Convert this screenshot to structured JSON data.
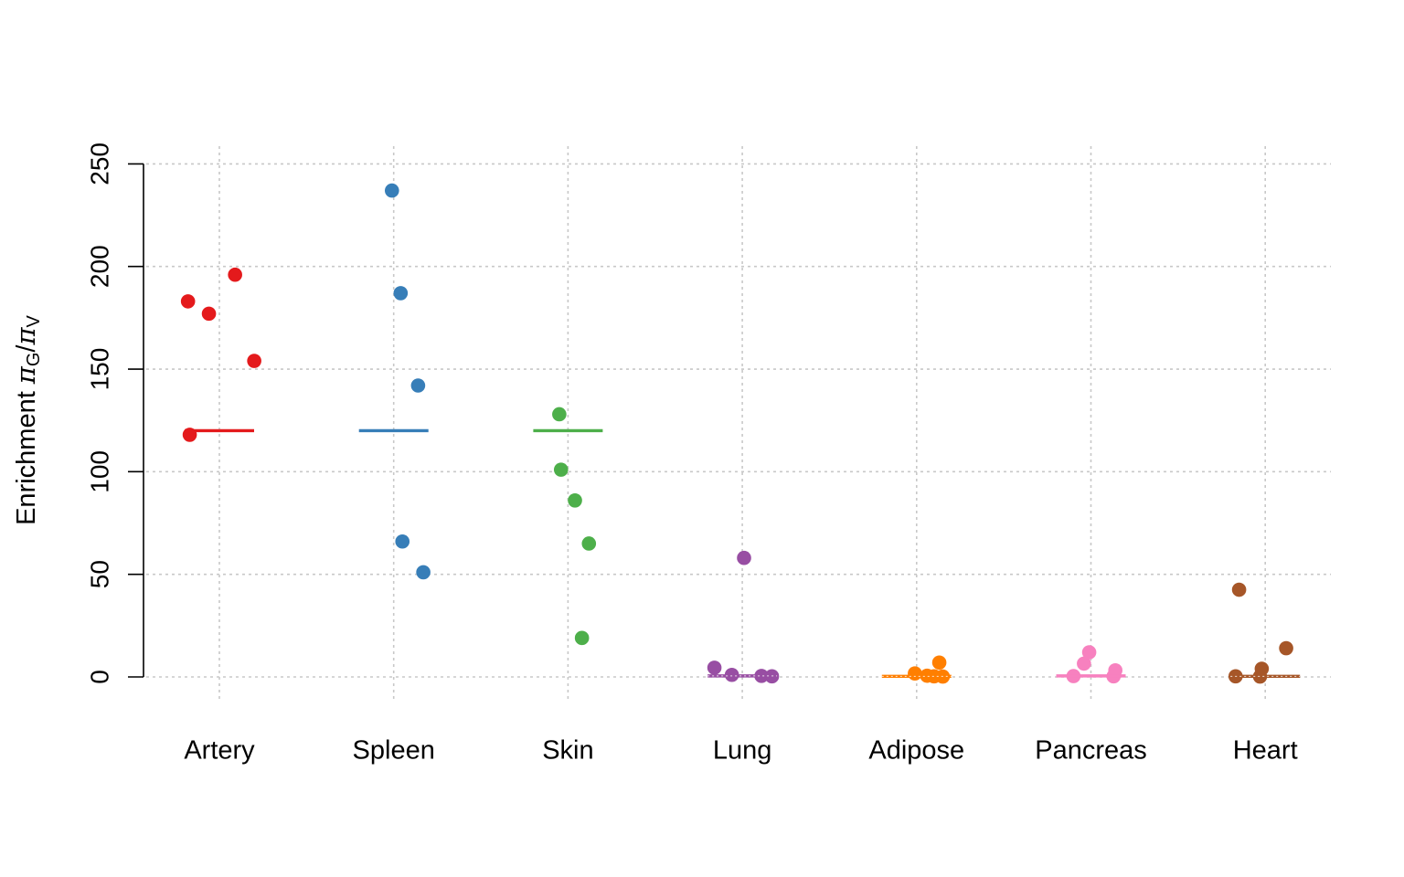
{
  "chart_data": {
    "type": "scatter",
    "title": "",
    "xlabel": "",
    "ylabel": {
      "prefix": "Enrichment ",
      "symbol": "π",
      "numerator_sub": "G",
      "separator": "/",
      "denominator_sub": "V"
    },
    "ylim": [
      -20,
      258
    ],
    "yticks": [
      0,
      50,
      100,
      150,
      200,
      250
    ],
    "grid": true,
    "categories": [
      "Artery",
      "Spleen",
      "Skin",
      "Lung",
      "Adipose",
      "Pancreas",
      "Heart"
    ],
    "series": [
      {
        "category": "Artery",
        "color": "#e41a1c",
        "line_value": 120,
        "line_style": "solid",
        "points": [
          {
            "dx": -0.18,
            "y": 183
          },
          {
            "dx": -0.06,
            "y": 177
          },
          {
            "dx": 0.09,
            "y": 196
          },
          {
            "dx": 0.2,
            "y": 154
          },
          {
            "dx": -0.17,
            "y": 118
          }
        ]
      },
      {
        "category": "Spleen",
        "color": "#377eb8",
        "line_value": 120,
        "line_style": "solid",
        "points": [
          {
            "dx": -0.01,
            "y": 237
          },
          {
            "dx": 0.04,
            "y": 187
          },
          {
            "dx": 0.14,
            "y": 142
          },
          {
            "dx": 0.05,
            "y": 66
          },
          {
            "dx": 0.17,
            "y": 51
          }
        ]
      },
      {
        "category": "Skin",
        "color": "#4daf4a",
        "line_value": 120,
        "line_style": "solid",
        "points": [
          {
            "dx": -0.05,
            "y": 128
          },
          {
            "dx": -0.04,
            "y": 101
          },
          {
            "dx": 0.04,
            "y": 86
          },
          {
            "dx": 0.12,
            "y": 65
          },
          {
            "dx": 0.08,
            "y": 19
          }
        ]
      },
      {
        "category": "Lung",
        "color": "#984ea3",
        "line_value": 0.5,
        "line_style": "dashed",
        "points": [
          {
            "dx": 0.01,
            "y": 58
          },
          {
            "dx": -0.16,
            "y": 4.5
          },
          {
            "dx": -0.06,
            "y": 1
          },
          {
            "dx": 0.11,
            "y": 0.5
          },
          {
            "dx": 0.17,
            "y": 0.3
          }
        ]
      },
      {
        "category": "Adipose",
        "color": "#ff7f00",
        "line_value": 0.3,
        "line_style": "dashed",
        "points": [
          {
            "dx": 0.13,
            "y": 7
          },
          {
            "dx": -0.01,
            "y": 1.7
          },
          {
            "dx": 0.06,
            "y": 0.6
          },
          {
            "dx": 0.1,
            "y": 0.3
          },
          {
            "dx": 0.15,
            "y": 0.2
          }
        ]
      },
      {
        "category": "Pancreas",
        "color": "#f781bf",
        "line_value": 0.5,
        "line_style": "solid",
        "points": [
          {
            "dx": -0.1,
            "y": 0.4
          },
          {
            "dx": -0.04,
            "y": 6.5
          },
          {
            "dx": -0.01,
            "y": 12
          },
          {
            "dx": 0.14,
            "y": 3.2
          },
          {
            "dx": 0.13,
            "y": 0.3
          }
        ]
      },
      {
        "category": "Heart",
        "color": "#a65628",
        "line_value": 0.3,
        "line_style": "dashed",
        "points": [
          {
            "dx": -0.15,
            "y": 42.5
          },
          {
            "dx": 0.12,
            "y": 14
          },
          {
            "dx": -0.02,
            "y": 4
          },
          {
            "dx": -0.17,
            "y": 0.3
          },
          {
            "dx": -0.03,
            "y": 0.2
          }
        ]
      }
    ]
  }
}
